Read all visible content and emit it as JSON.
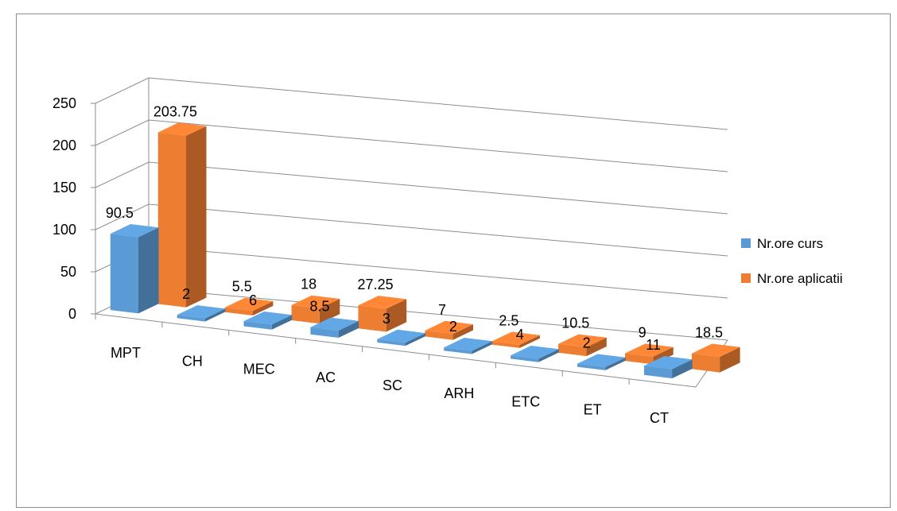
{
  "chart_data": {
    "type": "bar",
    "categories": [
      "MPT",
      "CH",
      "MEC",
      "AC",
      "SC",
      "ARH",
      "ETC",
      "ET",
      "CT"
    ],
    "series": [
      {
        "name": "Nr.ore curs",
        "values": [
          90.5,
          2,
          6,
          8.5,
          3,
          2,
          4,
          2,
          11
        ],
        "color": "#5b9bd5"
      },
      {
        "name": "Nr.ore aplicatii",
        "values": [
          203.75,
          5.5,
          18,
          27.25,
          7,
          2.5,
          10.5,
          9,
          18.5
        ],
        "color": "#ed7d31"
      }
    ],
    "y_ticks": [
      "0",
      "50",
      "100",
      "150",
      "200",
      "250"
    ],
    "ylim": [
      0,
      250
    ],
    "grid": true,
    "legend_position": "right",
    "style": "3d-clustered-column"
  }
}
